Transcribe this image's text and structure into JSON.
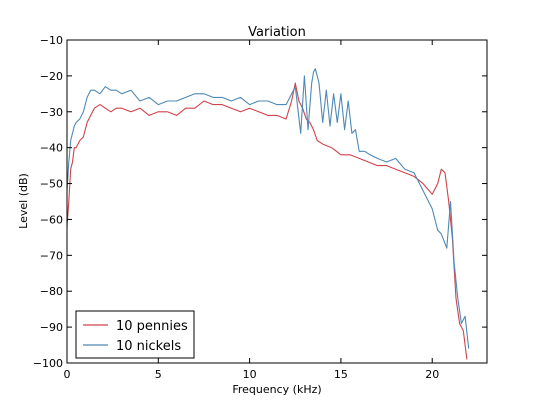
{
  "chart_data": {
    "type": "line",
    "title": "Variation",
    "xlabel": "Frequency (kHz)",
    "ylabel": "Level (dB)",
    "xlim": [
      0,
      23
    ],
    "ylim": [
      -100,
      -10
    ],
    "xticks": [
      0,
      5,
      10,
      15,
      20
    ],
    "xtick_labels": [
      "0",
      "5",
      "10",
      "15",
      "20"
    ],
    "yticks": [
      -100,
      -90,
      -80,
      -70,
      -60,
      -50,
      -40,
      -30,
      -20,
      -10
    ],
    "ytick_labels": [
      "−100",
      "−90",
      "−80",
      "−70",
      "−60",
      "−50",
      "−40",
      "−30",
      "−20",
      "−10"
    ],
    "grid": false,
    "legend_position": "lower-left",
    "series": [
      {
        "name": "10 pennies",
        "color": "#d0434a",
        "x": [
          0,
          0.1,
          0.2,
          0.3,
          0.4,
          0.5,
          0.7,
          0.9,
          1.1,
          1.3,
          1.5,
          1.8,
          2.1,
          2.4,
          2.7,
          3.0,
          3.5,
          4.0,
          4.5,
          5.0,
          5.5,
          6.0,
          6.5,
          7.0,
          7.5,
          8.0,
          8.5,
          9.0,
          9.5,
          10.0,
          10.5,
          11.0,
          11.5,
          12.0,
          12.3,
          12.5,
          12.7,
          12.9,
          13.1,
          13.3,
          13.5,
          13.7,
          14.0,
          14.5,
          15.0,
          15.5,
          16.0,
          16.5,
          17.0,
          17.5,
          18.0,
          18.5,
          19.0,
          19.5,
          20.0,
          20.3,
          20.5,
          20.7,
          20.9,
          21.1,
          21.3,
          21.5,
          21.7,
          21.9
        ],
        "values": [
          -62,
          -55,
          -46,
          -44,
          -40,
          -40,
          -38,
          -37,
          -33,
          -31,
          -29,
          -28,
          -29,
          -30,
          -29,
          -29,
          -30,
          -29,
          -31,
          -30,
          -30,
          -31,
          -29,
          -29,
          -27,
          -28,
          -28,
          -29,
          -30,
          -29,
          -30,
          -31,
          -31,
          -32,
          -27,
          -22,
          -27,
          -29,
          -32,
          -33,
          -35,
          -38,
          -39,
          -40,
          -42,
          -42,
          -43,
          -44,
          -45,
          -45,
          -46,
          -47,
          -48,
          -50,
          -53,
          -50,
          -46,
          -47,
          -55,
          -65,
          -82,
          -89,
          -91,
          -99
        ]
      },
      {
        "name": "10 nickels",
        "color": "#4f89b5",
        "x": [
          0,
          0.1,
          0.2,
          0.3,
          0.4,
          0.5,
          0.7,
          0.9,
          1.1,
          1.3,
          1.5,
          1.8,
          2.1,
          2.4,
          2.7,
          3.0,
          3.5,
          4.0,
          4.5,
          5.0,
          5.5,
          6.0,
          6.5,
          7.0,
          7.5,
          8.0,
          8.5,
          9.0,
          9.5,
          10.0,
          10.5,
          11.0,
          11.5,
          12.0,
          12.5,
          12.8,
          13.0,
          13.2,
          13.4,
          13.5,
          13.6,
          13.7,
          13.8,
          14.0,
          14.2,
          14.4,
          14.6,
          14.8,
          15.0,
          15.2,
          15.4,
          15.6,
          15.8,
          16.0,
          16.3,
          16.6,
          17.0,
          17.5,
          18.0,
          18.5,
          19.0,
          19.5,
          20.0,
          20.3,
          20.5,
          20.8,
          21.0,
          21.2,
          21.4,
          21.6,
          21.8,
          22.0
        ],
        "values": [
          -52,
          -44,
          -38,
          -36,
          -34,
          -33,
          -32,
          -30,
          -26,
          -24,
          -24,
          -25,
          -23,
          -24,
          -24,
          -25,
          -24,
          -27,
          -26,
          -28,
          -27,
          -27,
          -26,
          -25,
          -25,
          -26,
          -26,
          -27,
          -26,
          -28,
          -27,
          -27,
          -28,
          -28,
          -23,
          -36,
          -20,
          -35,
          -22,
          -19,
          -18,
          -20,
          -22,
          -33,
          -24,
          -34,
          -25,
          -33,
          -25,
          -35,
          -27,
          -36,
          -35,
          -41,
          -41,
          -42,
          -43,
          -44,
          -43,
          -46,
          -47,
          -52,
          -57,
          -63,
          -64,
          -68,
          -55,
          -72,
          -82,
          -89,
          -87,
          -96
        ]
      }
    ]
  }
}
